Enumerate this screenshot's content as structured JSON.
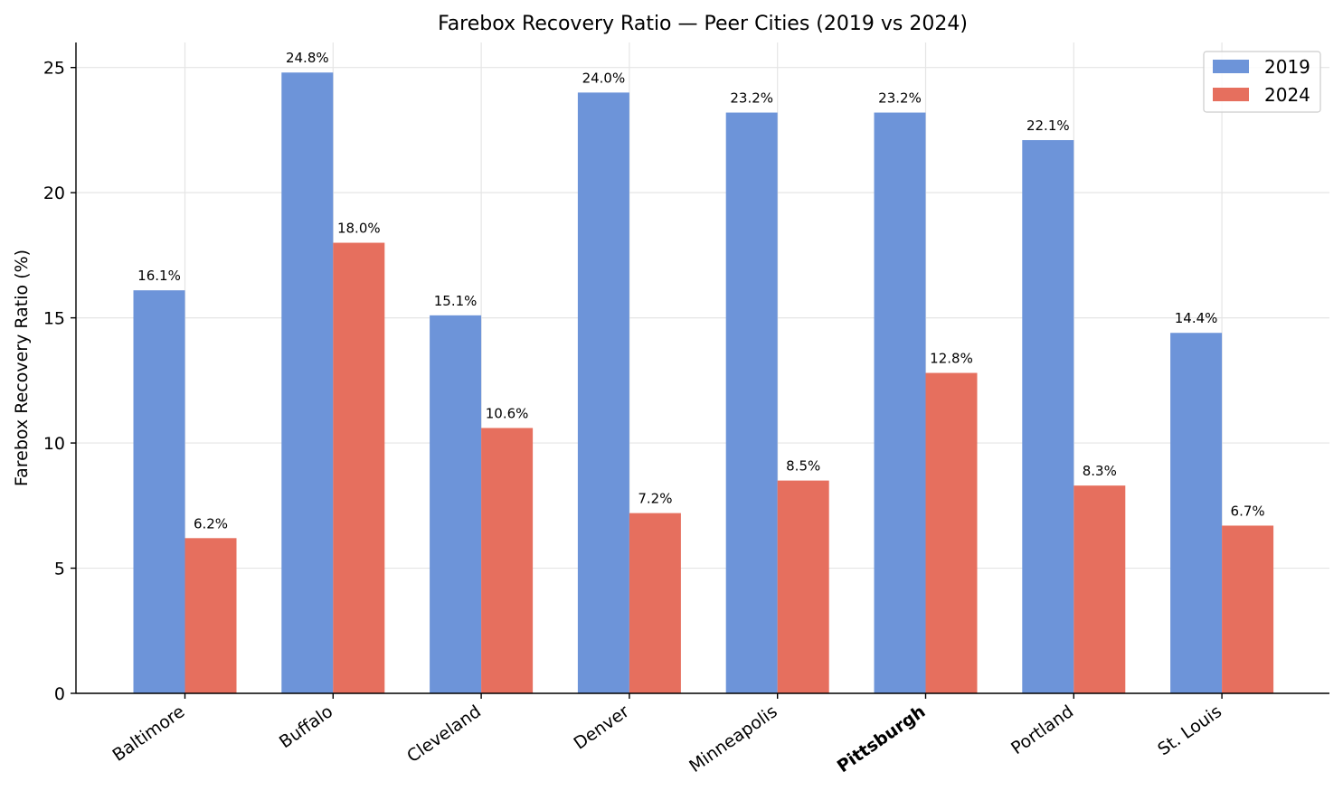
{
  "chart_data": {
    "type": "bar",
    "title": "Farebox Recovery Ratio — Peer Cities (2019 vs 2024)",
    "xlabel": "",
    "ylabel": "Farebox Recovery Ratio (%)",
    "categories": [
      "Baltimore",
      "Buffalo",
      "Cleveland",
      "Denver",
      "Minneapolis",
      "Pittsburgh",
      "Portland",
      "St. Louis"
    ],
    "highlight_category": "Pittsburgh",
    "series": [
      {
        "name": "2019",
        "color": "#6d94d9",
        "values": [
          16.1,
          24.8,
          15.1,
          24.0,
          23.2,
          23.2,
          22.1,
          14.4
        ],
        "labels": [
          "16.1%",
          "24.8%",
          "15.1%",
          "24.0%",
          "23.2%",
          "23.2%",
          "22.1%",
          "14.4%"
        ]
      },
      {
        "name": "2024",
        "color": "#e66f5e",
        "values": [
          6.2,
          18.0,
          10.6,
          7.2,
          8.5,
          12.8,
          8.3,
          6.7
        ],
        "labels": [
          "6.2%",
          "18.0%",
          "10.6%",
          "7.2%",
          "8.5%",
          "12.8%",
          "8.3%",
          "6.7%"
        ]
      }
    ],
    "ylim": [
      0,
      26
    ],
    "yticks": [
      0,
      5,
      10,
      15,
      20,
      25
    ],
    "ytick_labels": [
      "0",
      "5",
      "10",
      "15",
      "20",
      "25"
    ],
    "grid": true,
    "legend_position": "top-right"
  }
}
